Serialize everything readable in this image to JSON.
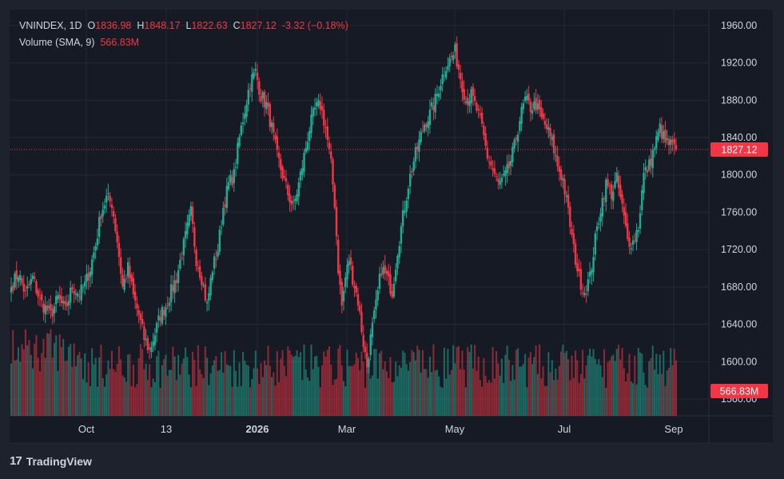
{
  "header": {
    "symbol": "VNINDEX",
    "interval": "1D",
    "open_label": "O",
    "open": "1836.98",
    "high_label": "H",
    "high": "1848.17",
    "low_label": "L",
    "low": "1822.63",
    "close_label": "C",
    "close": "1827.12",
    "change": "-3.32 (−0.18%)",
    "volume_label": "Volume (SMA, 9)",
    "volume_value": "566.83M"
  },
  "branding": {
    "name": "TradingView",
    "logo_mark": "17"
  },
  "colors": {
    "up": "#22ab94",
    "down": "#f23645",
    "background": "#161a25",
    "grid": "#242833",
    "text": "#d1d4dc"
  },
  "chart_data": {
    "type": "candlestick",
    "symbol": "VNINDEX",
    "interval": "1D",
    "y_ticks": [
      1960,
      1920,
      1880,
      1840,
      1800,
      1760,
      1720,
      1680,
      1640,
      1600,
      1560
    ],
    "y_tick_labels": [
      "1960.00",
      "1920.00",
      "1880.00",
      "1840.00",
      "1800.00",
      "1760.00",
      "1720.00",
      "1680.00",
      "1640.00",
      "1600.00",
      "1560.00"
    ],
    "ylim": [
      1542,
      1977
    ],
    "x_labels": [
      "Oct",
      "13",
      "2026",
      "Mar",
      "May",
      "Jul",
      "Sep"
    ],
    "last_price": 1827.12,
    "last_price_label": "1827.12",
    "volume_sma_label": "566.83M",
    "close_path": [
      [
        0,
        1680
      ],
      [
        4,
        1695
      ],
      [
        8,
        1672
      ],
      [
        12,
        1690
      ],
      [
        16,
        1665
      ],
      [
        22,
        1650
      ],
      [
        26,
        1668
      ],
      [
        30,
        1655
      ],
      [
        34,
        1680
      ],
      [
        38,
        1672
      ],
      [
        41,
        1682
      ],
      [
        44,
        1700
      ],
      [
        47,
        1725
      ],
      [
        50,
        1760
      ],
      [
        53,
        1775
      ],
      [
        56,
        1770
      ],
      [
        59,
        1730
      ],
      [
        62,
        1680
      ],
      [
        65,
        1700
      ],
      [
        68,
        1670
      ],
      [
        71,
        1650
      ],
      [
        74,
        1625
      ],
      [
        77,
        1612
      ],
      [
        80,
        1630
      ],
      [
        83,
        1650
      ],
      [
        86,
        1660
      ],
      [
        89,
        1675
      ],
      [
        92,
        1690
      ],
      [
        96,
        1725
      ],
      [
        100,
        1760
      ],
      [
        103,
        1710
      ],
      [
        106,
        1690
      ],
      [
        109,
        1660
      ],
      [
        112,
        1700
      ],
      [
        115,
        1720
      ],
      [
        118,
        1765
      ],
      [
        121,
        1790
      ],
      [
        124,
        1800
      ],
      [
        127,
        1840
      ],
      [
        130,
        1870
      ],
      [
        133,
        1900
      ],
      [
        136,
        1910
      ],
      [
        139,
        1885
      ],
      [
        142,
        1875
      ],
      [
        145,
        1850
      ],
      [
        148,
        1820
      ],
      [
        151,
        1800
      ],
      [
        154,
        1780
      ],
      [
        157,
        1765
      ],
      [
        160,
        1790
      ],
      [
        163,
        1820
      ],
      [
        166,
        1850
      ],
      [
        169,
        1870
      ],
      [
        172,
        1875
      ],
      [
        175,
        1850
      ],
      [
        178,
        1810
      ],
      [
        180,
        1770
      ],
      [
        182,
        1700
      ],
      [
        184,
        1660
      ],
      [
        186,
        1690
      ],
      [
        188,
        1710
      ],
      [
        190,
        1690
      ],
      [
        193,
        1665
      ],
      [
        196,
        1620
      ],
      [
        198,
        1595
      ],
      [
        200,
        1625
      ],
      [
        203,
        1660
      ],
      [
        206,
        1700
      ],
      [
        209,
        1690
      ],
      [
        212,
        1675
      ],
      [
        215,
        1720
      ],
      [
        218,
        1755
      ],
      [
        221,
        1790
      ],
      [
        224,
        1815
      ],
      [
        227,
        1835
      ],
      [
        230,
        1855
      ],
      [
        233,
        1865
      ],
      [
        236,
        1880
      ],
      [
        239,
        1900
      ],
      [
        242,
        1918
      ],
      [
        245,
        1925
      ],
      [
        247,
        1932
      ],
      [
        250,
        1905
      ],
      [
        253,
        1880
      ],
      [
        256,
        1885
      ],
      [
        259,
        1870
      ],
      [
        262,
        1850
      ],
      [
        265,
        1820
      ],
      [
        268,
        1805
      ],
      [
        271,
        1790
      ],
      [
        274,
        1795
      ],
      [
        277,
        1808
      ],
      [
        280,
        1830
      ],
      [
        283,
        1860
      ],
      [
        286,
        1880
      ],
      [
        289,
        1872
      ],
      [
        292,
        1875
      ],
      [
        295,
        1860
      ],
      [
        298,
        1850
      ],
      [
        301,
        1835
      ],
      [
        304,
        1810
      ],
      [
        307,
        1795
      ],
      [
        310,
        1760
      ],
      [
        313,
        1720
      ],
      [
        316,
        1690
      ],
      [
        319,
        1675
      ],
      [
        322,
        1690
      ],
      [
        325,
        1730
      ],
      [
        328,
        1765
      ],
      [
        331,
        1790
      ],
      [
        334,
        1780
      ],
      [
        337,
        1795
      ],
      [
        340,
        1765
      ],
      [
        343,
        1730
      ],
      [
        346,
        1728
      ],
      [
        349,
        1745
      ],
      [
        352,
        1800
      ],
      [
        355,
        1810
      ],
      [
        358,
        1830
      ],
      [
        361,
        1850
      ],
      [
        364,
        1835
      ],
      [
        367,
        1832
      ],
      [
        370,
        1827.12
      ]
    ]
  }
}
